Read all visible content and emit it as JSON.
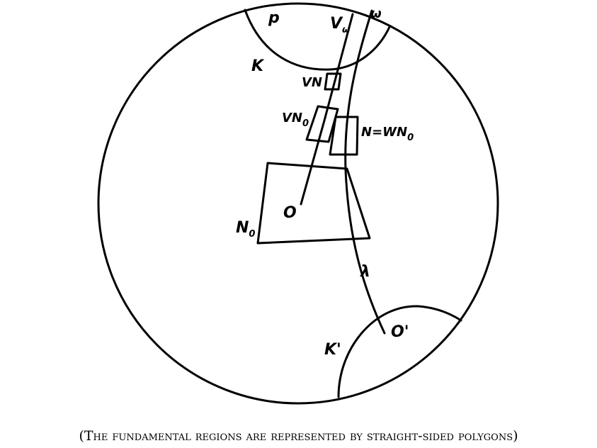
{
  "labels": {
    "p": "p",
    "v_omega": "V",
    "v_omega_sub": "ω",
    "omega": "ω",
    "k": "K",
    "vn": "VN",
    "vn0": "VN",
    "vn0_sub": "0",
    "n_eq_wn0_a": "N=WN",
    "n_eq_wn0_sub": "0",
    "o": "O",
    "n0": "N",
    "n0_sub": "0",
    "lambda": "λ",
    "o_prime": "O'",
    "k_prime": "K'"
  },
  "caption": "(The fundamental regions are represented by straight-sided polygons)"
}
